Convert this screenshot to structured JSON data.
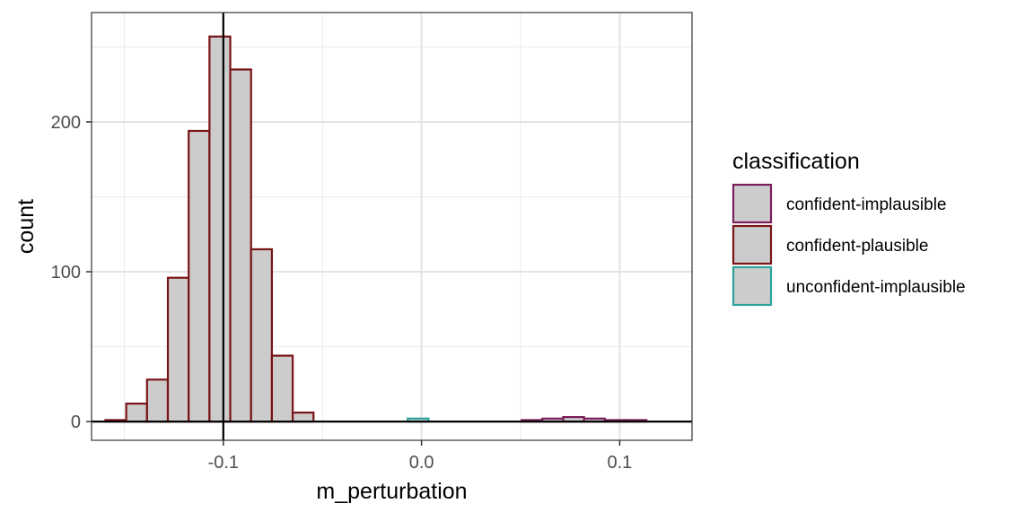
{
  "chart_data": {
    "type": "bar",
    "subtype": "histogram",
    "title": "",
    "xlabel": "m_perturbation",
    "ylabel": "count",
    "xlim": [
      -0.1665,
      0.1365
    ],
    "ylim": [
      -12.5,
      273
    ],
    "x_ticks": [
      -0.1,
      0.0,
      0.1
    ],
    "x_tick_labels": [
      "-0.1",
      "0.0",
      "0.1"
    ],
    "y_ticks": [
      0,
      100,
      200
    ],
    "y_tick_labels": [
      "0",
      "100",
      "200"
    ],
    "bin_width": 0.0105,
    "vline_x": -0.1,
    "hline_y": 0,
    "grid": true,
    "fill_color": "#cccccc",
    "legend": {
      "title": "classification",
      "position": "right",
      "entries": [
        {
          "label": "confident-implausible",
          "color": "#7b1e5c"
        },
        {
          "label": "confident-plausible",
          "color": "#7a1416"
        },
        {
          "label": "unconfident-implausible",
          "color": "#2aa39a"
        }
      ]
    },
    "series": [
      {
        "name": "confident-plausible",
        "color": "#7a1416",
        "bins": [
          {
            "x0": -0.1595,
            "x1": -0.149,
            "count": 1
          },
          {
            "x0": -0.149,
            "x1": -0.1385,
            "count": 12
          },
          {
            "x0": -0.1385,
            "x1": -0.128,
            "count": 28
          },
          {
            "x0": -0.128,
            "x1": -0.1175,
            "count": 96
          },
          {
            "x0": -0.1175,
            "x1": -0.107,
            "count": 194
          },
          {
            "x0": -0.107,
            "x1": -0.0965,
            "count": 257
          },
          {
            "x0": -0.0965,
            "x1": -0.086,
            "count": 235
          },
          {
            "x0": -0.086,
            "x1": -0.0755,
            "count": 115
          },
          {
            "x0": -0.0755,
            "x1": -0.065,
            "count": 44
          },
          {
            "x0": -0.065,
            "x1": -0.0545,
            "count": 6
          }
        ]
      },
      {
        "name": "unconfident-implausible",
        "color": "#2aa39a",
        "bins": [
          {
            "x0": -0.007,
            "x1": 0.0035,
            "count": 2
          }
        ]
      },
      {
        "name": "confident-implausible",
        "color": "#7b1e5c",
        "bins": [
          {
            "x0": 0.0505,
            "x1": 0.061,
            "count": 1
          },
          {
            "x0": 0.061,
            "x1": 0.0715,
            "count": 2
          },
          {
            "x0": 0.0715,
            "x1": 0.082,
            "count": 3
          },
          {
            "x0": 0.082,
            "x1": 0.0925,
            "count": 2
          },
          {
            "x0": 0.0925,
            "x1": 0.103,
            "count": 1
          },
          {
            "x0": 0.103,
            "x1": 0.1135,
            "count": 1
          }
        ]
      }
    ]
  }
}
